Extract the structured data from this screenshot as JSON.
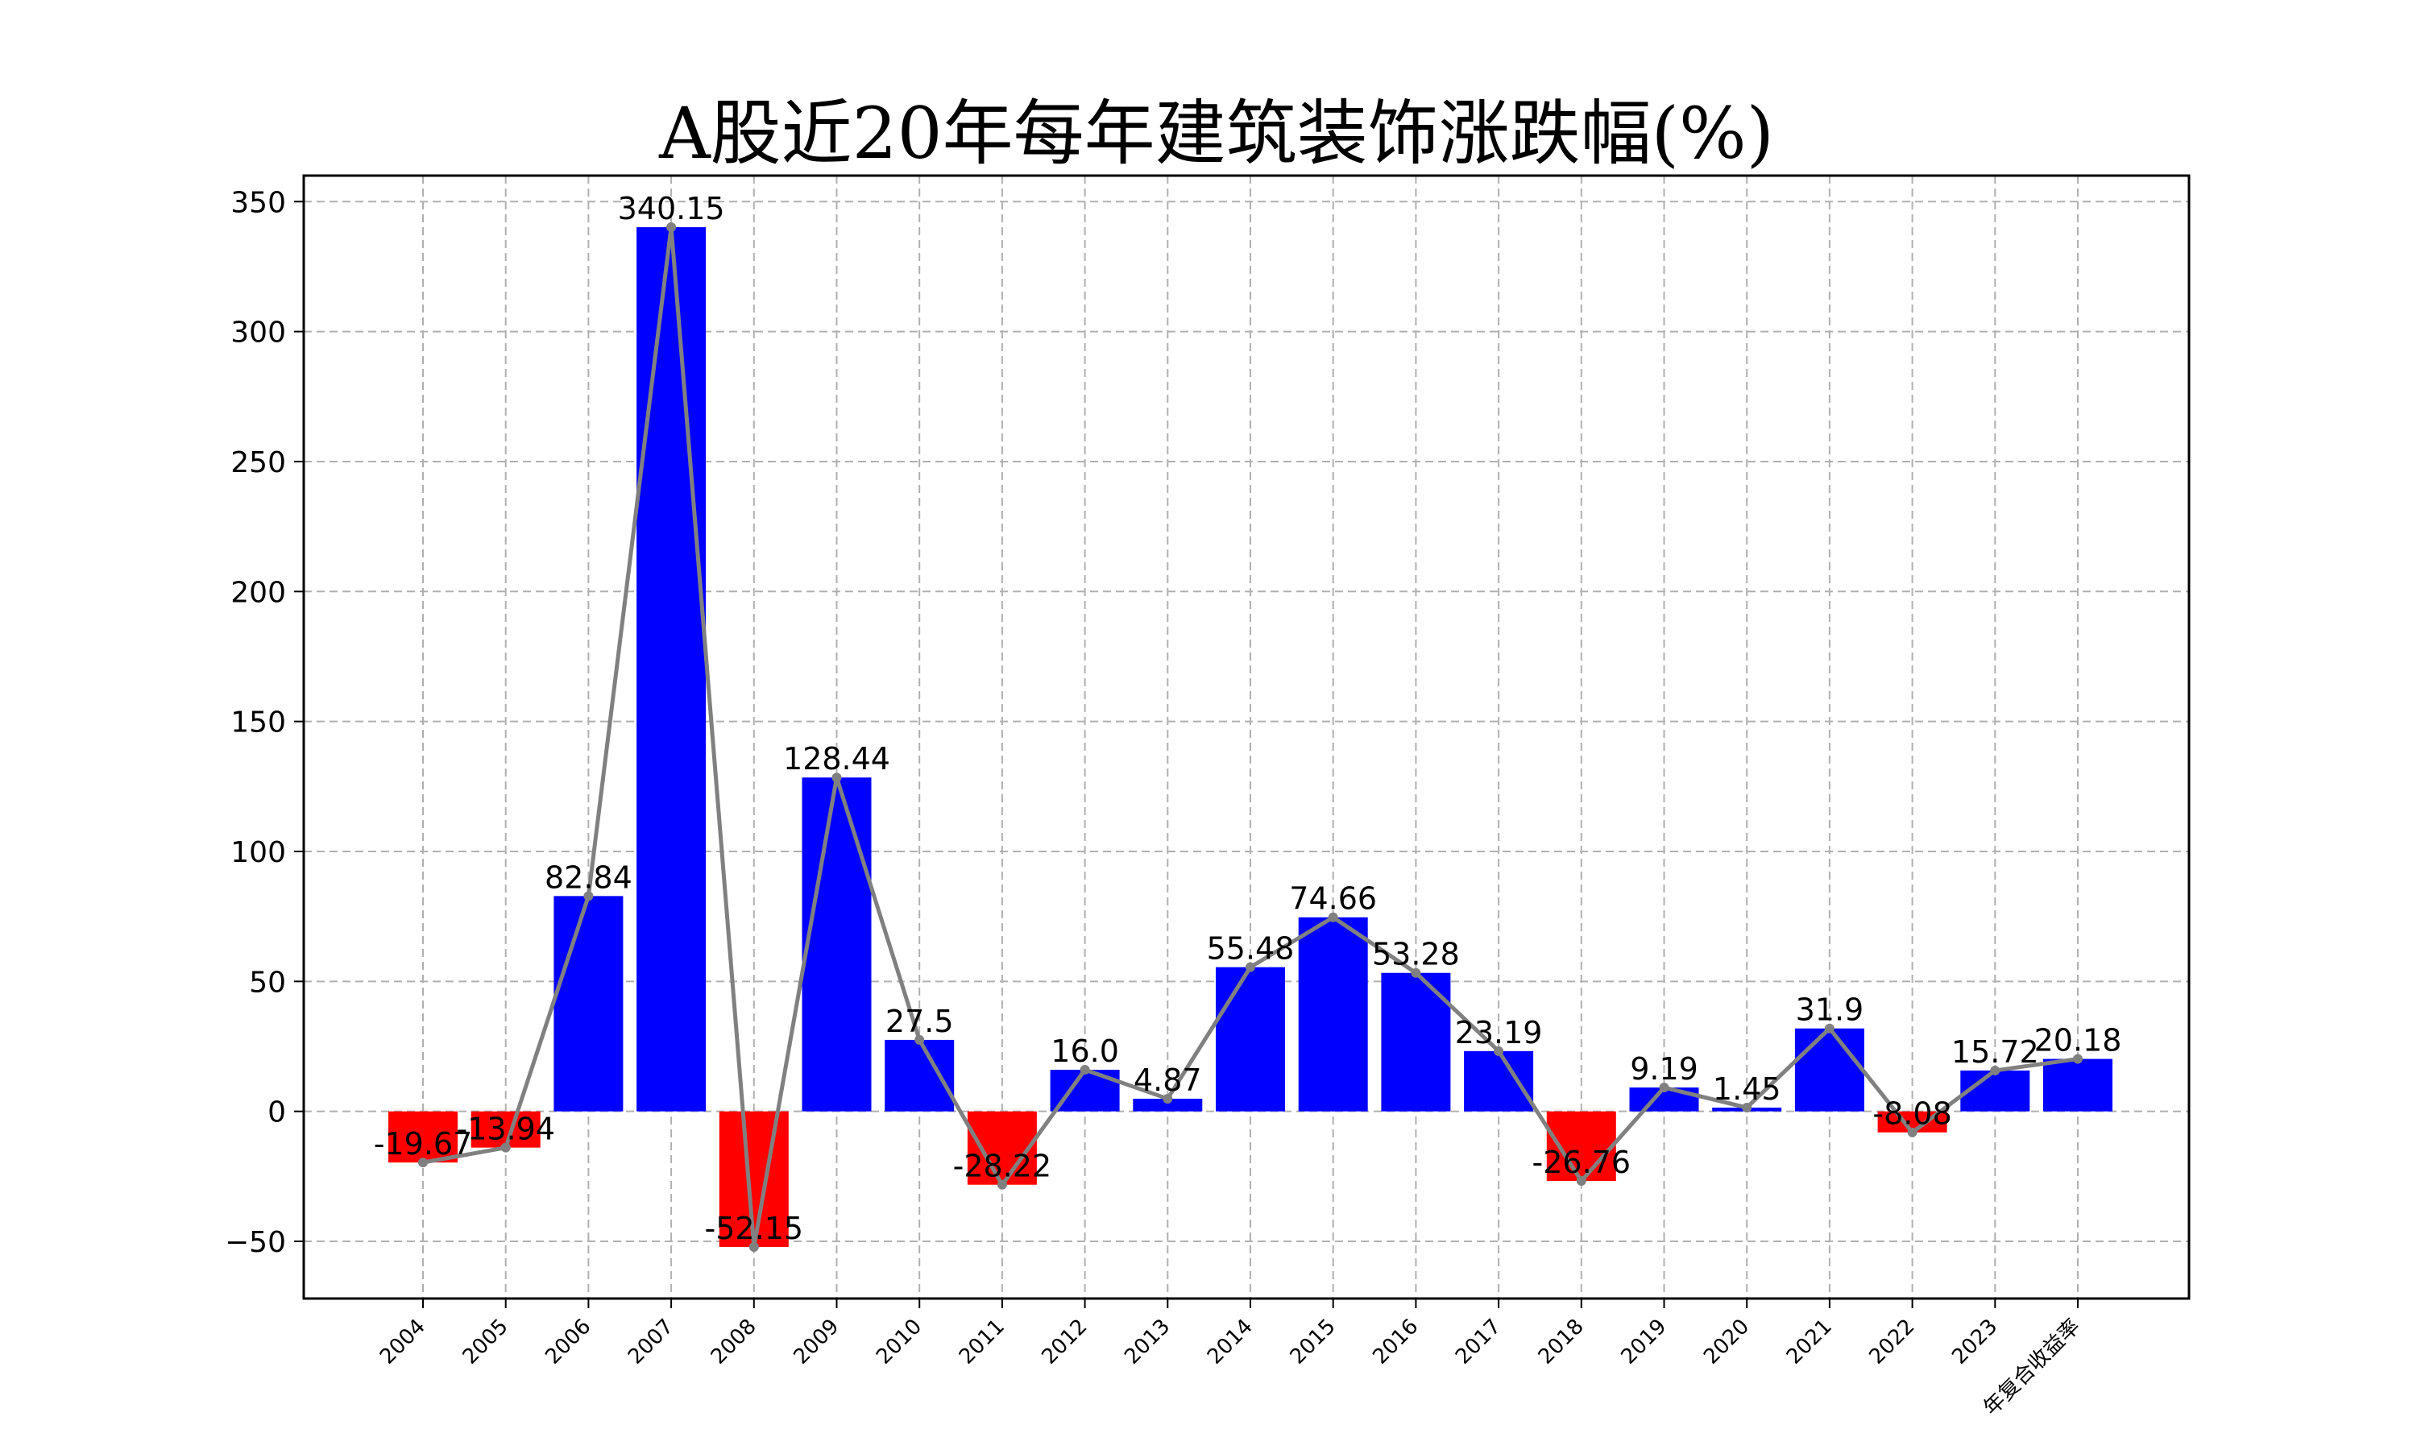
{
  "chart_data": {
    "type": "bar",
    "title": "A股近20年每年建筑装饰涨跌幅(%)",
    "xlabel": "",
    "ylabel": "",
    "categories": [
      "2004",
      "2005",
      "2006",
      "2007",
      "2008",
      "2009",
      "2010",
      "2011",
      "2012",
      "2013",
      "2014",
      "2015",
      "2016",
      "2017",
      "2018",
      "2019",
      "2020",
      "2021",
      "2022",
      "2023",
      "年复合收益率"
    ],
    "values": [
      -19.67,
      -13.94,
      82.84,
      340.15,
      -52.15,
      128.44,
      27.5,
      -28.22,
      16.0,
      4.87,
      55.48,
      74.66,
      53.28,
      23.19,
      -26.76,
      9.19,
      1.45,
      31.9,
      -8.08,
      15.72,
      20.18
    ],
    "data_labels": [
      "-19.67",
      "-13.94",
      "82.84",
      "340.15",
      "-52.15",
      "128.44",
      "27.5",
      "-28.22",
      "16.0",
      "4.87",
      "55.48",
      "74.66",
      "53.28",
      "23.19",
      "-26.76",
      "9.19",
      "1.45",
      "31.9",
      "-8.08",
      "15.72",
      "20.18"
    ],
    "ylim": [
      -72,
      360
    ],
    "yticks": [
      -50,
      0,
      50,
      100,
      150,
      200,
      250,
      300,
      350
    ],
    "ytick_labels": [
      "−50",
      "0",
      "50",
      "100",
      "150",
      "200",
      "250",
      "300",
      "350"
    ],
    "grid": true,
    "overlay_line": true,
    "colors": {
      "positive": "#0000ff",
      "negative": "#ff0000",
      "line": "#808080",
      "grid": "#b0b0b0"
    }
  }
}
